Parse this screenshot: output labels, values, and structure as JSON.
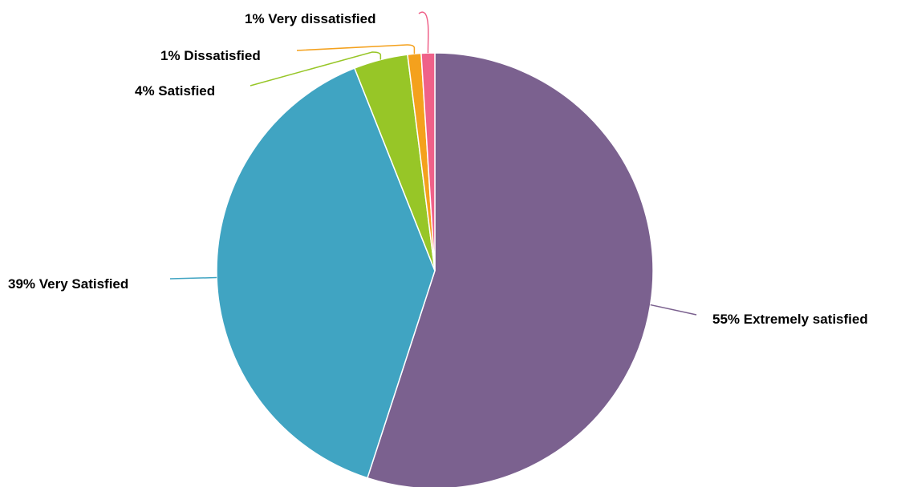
{
  "chart_data": {
    "type": "pie",
    "categories": [
      "Extremely satisfied",
      "Very Satisfied",
      "Satisfied",
      "Dissatisfied",
      "Very dissatisfied"
    ],
    "values": [
      55,
      39,
      4,
      1,
      1
    ],
    "unit": "%",
    "labels": [
      "55% Extremely satisfied",
      "39% Very Satisfied",
      "4% Satisfied",
      "1% Dissatisfied",
      "1% Very dissatisfied"
    ],
    "colors": [
      "#7b618f",
      "#40a4c2",
      "#97c627",
      "#f4a11d",
      "#ef6189"
    ],
    "start_position": "12 o'clock",
    "direction": "clockwise",
    "legend": "none",
    "title": ""
  }
}
